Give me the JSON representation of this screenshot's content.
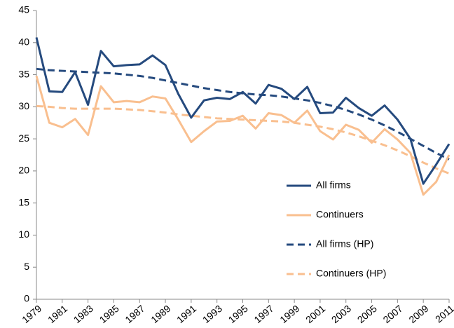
{
  "chart_data": {
    "type": "line",
    "x": [
      1979,
      1980,
      1981,
      1982,
      1983,
      1984,
      1985,
      1986,
      1987,
      1988,
      1989,
      1990,
      1991,
      1992,
      1993,
      1994,
      1995,
      1996,
      1997,
      1998,
      1999,
      2000,
      2001,
      2002,
      2003,
      2004,
      2005,
      2006,
      2007,
      2008,
      2009,
      2010,
      2011
    ],
    "xlim": [
      1979,
      2011
    ],
    "xticks": [
      1979,
      1981,
      1983,
      1985,
      1987,
      1989,
      1991,
      1993,
      1995,
      1997,
      1999,
      2001,
      2003,
      2005,
      2007,
      2009,
      2011
    ],
    "ylim": [
      0,
      45
    ],
    "yticks": [
      0,
      5,
      10,
      15,
      20,
      25,
      30,
      35,
      40,
      45
    ],
    "series": [
      {
        "name": "All firms",
        "color": "#254a7e",
        "dashed": false,
        "values": [
          40.8,
          32.4,
          32.3,
          35.4,
          30.3,
          38.7,
          36.3,
          36.5,
          36.6,
          38.0,
          36.5,
          32.0,
          28.3,
          31.0,
          31.4,
          31.2,
          32.3,
          30.5,
          33.4,
          32.8,
          31.2,
          33.1,
          29.0,
          29.1,
          31.4,
          29.8,
          28.6,
          30.2,
          28.0,
          25.0,
          18.0,
          21.0,
          24.2
        ]
      },
      {
        "name": "Continuers",
        "color": "#f9bf8f",
        "dashed": false,
        "values": [
          34.8,
          27.5,
          26.8,
          28.1,
          25.6,
          33.2,
          30.7,
          30.9,
          30.7,
          31.6,
          31.3,
          28.0,
          24.5,
          26.2,
          27.7,
          27.8,
          28.6,
          26.6,
          29.0,
          28.7,
          27.5,
          29.4,
          26.2,
          24.9,
          27.2,
          26.4,
          24.4,
          26.5,
          24.9,
          22.8,
          16.3,
          18.3,
          22.5
        ]
      },
      {
        "name": "All firms (HP)",
        "color": "#254a7e",
        "dashed": true,
        "values": [
          35.9,
          35.7,
          35.6,
          35.5,
          35.4,
          35.3,
          35.2,
          35.0,
          34.8,
          34.5,
          34.1,
          33.7,
          33.3,
          32.9,
          32.6,
          32.3,
          32.1,
          31.9,
          31.8,
          31.6,
          31.3,
          31.0,
          30.6,
          30.1,
          29.5,
          28.8,
          28.0,
          27.1,
          26.1,
          25.0,
          23.9,
          22.8,
          21.8
        ]
      },
      {
        "name": "Continuers (HP)",
        "color": "#f9bf8f",
        "dashed": true,
        "values": [
          30.1,
          30.0,
          29.8,
          29.7,
          29.7,
          29.7,
          29.7,
          29.6,
          29.5,
          29.3,
          29.1,
          28.8,
          28.6,
          28.4,
          28.2,
          28.1,
          28.0,
          27.9,
          27.8,
          27.7,
          27.5,
          27.2,
          26.9,
          26.5,
          26.0,
          25.4,
          24.7,
          24.0,
          23.2,
          22.3,
          21.3,
          20.4,
          19.6
        ]
      }
    ]
  }
}
